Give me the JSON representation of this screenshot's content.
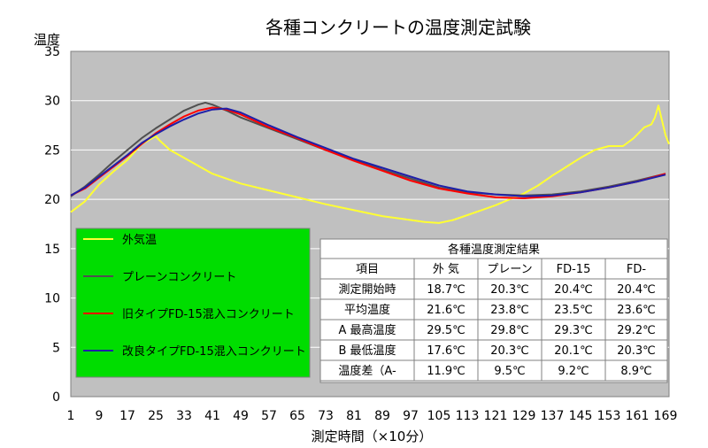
{
  "chart_data": {
    "type": "line",
    "title": "各種コンクリートの温度測定試験",
    "ylabel": "温度",
    "xlabel": "測定時間（×10分）",
    "ylim": [
      0,
      35
    ],
    "y_ticks": [
      "0",
      "5",
      "10",
      "15",
      "20",
      "25",
      "30",
      "35"
    ],
    "x_ticks": [
      "1",
      "9",
      "17",
      "25",
      "33",
      "41",
      "49",
      "57",
      "65",
      "73",
      "81",
      "89",
      "97",
      "105",
      "113",
      "121",
      "129",
      "137",
      "145",
      "153",
      "161",
      "169"
    ],
    "xlim": [
      1,
      170
    ],
    "grid": true,
    "legend": {
      "placement": "bottom-left",
      "items": [
        "外気温",
        "プレーンコンクリート",
        "旧タイプFD-15混入コンクリート",
        "改良タイプFD-15混入コンクリート"
      ]
    },
    "series": [
      {
        "name": "外気温",
        "color": "#ffff33",
        "points": [
          [
            1,
            18.7
          ],
          [
            5,
            19.8
          ],
          [
            9,
            21.5
          ],
          [
            13,
            22.8
          ],
          [
            17,
            24.0
          ],
          [
            21,
            25.6
          ],
          [
            25,
            26.4
          ],
          [
            26,
            26.0
          ],
          [
            29,
            25.0
          ],
          [
            33,
            24.2
          ],
          [
            37,
            23.4
          ],
          [
            41,
            22.6
          ],
          [
            49,
            21.6
          ],
          [
            57,
            20.9
          ],
          [
            65,
            20.2
          ],
          [
            73,
            19.5
          ],
          [
            81,
            18.9
          ],
          [
            89,
            18.3
          ],
          [
            97,
            17.9
          ],
          [
            101,
            17.7
          ],
          [
            105,
            17.6
          ],
          [
            109,
            17.9
          ],
          [
            113,
            18.4
          ],
          [
            117,
            18.9
          ],
          [
            121,
            19.4
          ],
          [
            125,
            20.0
          ],
          [
            129,
            20.6
          ],
          [
            133,
            21.4
          ],
          [
            137,
            22.4
          ],
          [
            141,
            23.3
          ],
          [
            145,
            24.2
          ],
          [
            149,
            25.0
          ],
          [
            153,
            25.4
          ],
          [
            157,
            25.4
          ],
          [
            160,
            26.2
          ],
          [
            163,
            27.3
          ],
          [
            165,
            27.6
          ],
          [
            166,
            28.3
          ],
          [
            167,
            29.5
          ],
          [
            168,
            28.0
          ],
          [
            169,
            26.5
          ],
          [
            170,
            25.6
          ]
        ]
      },
      {
        "name": "プレーンコンクリート",
        "color": "#505050",
        "points": [
          [
            1,
            20.3
          ],
          [
            5,
            21.3
          ],
          [
            9,
            22.5
          ],
          [
            13,
            23.8
          ],
          [
            17,
            25.0
          ],
          [
            21,
            26.2
          ],
          [
            25,
            27.2
          ],
          [
            29,
            28.1
          ],
          [
            33,
            29.0
          ],
          [
            37,
            29.6
          ],
          [
            39,
            29.8
          ],
          [
            41,
            29.6
          ],
          [
            45,
            29.0
          ],
          [
            49,
            28.3
          ],
          [
            57,
            27.2
          ],
          [
            65,
            26.1
          ],
          [
            73,
            25.0
          ],
          [
            81,
            24.0
          ],
          [
            89,
            23.0
          ],
          [
            97,
            22.1
          ],
          [
            105,
            21.2
          ],
          [
            113,
            20.7
          ],
          [
            121,
            20.5
          ],
          [
            129,
            20.4
          ],
          [
            137,
            20.5
          ],
          [
            145,
            20.8
          ],
          [
            153,
            21.3
          ],
          [
            161,
            21.9
          ],
          [
            169,
            22.6
          ]
        ]
      },
      {
        "name": "旧タイプFD-15混入コンクリート",
        "color": "#ff0000",
        "points": [
          [
            1,
            20.4
          ],
          [
            5,
            21.1
          ],
          [
            9,
            22.2
          ],
          [
            13,
            23.3
          ],
          [
            17,
            24.4
          ],
          [
            21,
            25.6
          ],
          [
            25,
            26.7
          ],
          [
            29,
            27.6
          ],
          [
            33,
            28.4
          ],
          [
            37,
            29.0
          ],
          [
            41,
            29.3
          ],
          [
            45,
            29.1
          ],
          [
            49,
            28.6
          ],
          [
            57,
            27.3
          ],
          [
            65,
            26.2
          ],
          [
            73,
            25.0
          ],
          [
            81,
            23.9
          ],
          [
            89,
            22.9
          ],
          [
            97,
            21.9
          ],
          [
            105,
            21.1
          ],
          [
            113,
            20.6
          ],
          [
            121,
            20.2
          ],
          [
            129,
            20.1
          ],
          [
            137,
            20.3
          ],
          [
            145,
            20.7
          ],
          [
            153,
            21.2
          ],
          [
            161,
            21.8
          ],
          [
            169,
            22.6
          ]
        ]
      },
      {
        "name": "改良タイプFD-15混入コンクリート",
        "color": "#1f1fa8",
        "points": [
          [
            1,
            20.4
          ],
          [
            5,
            21.2
          ],
          [
            9,
            22.3
          ],
          [
            13,
            23.4
          ],
          [
            17,
            24.5
          ],
          [
            21,
            25.7
          ],
          [
            25,
            26.6
          ],
          [
            29,
            27.4
          ],
          [
            33,
            28.1
          ],
          [
            37,
            28.7
          ],
          [
            41,
            29.1
          ],
          [
            45,
            29.2
          ],
          [
            49,
            28.8
          ],
          [
            57,
            27.5
          ],
          [
            65,
            26.3
          ],
          [
            73,
            25.2
          ],
          [
            81,
            24.1
          ],
          [
            89,
            23.2
          ],
          [
            97,
            22.3
          ],
          [
            105,
            21.4
          ],
          [
            113,
            20.8
          ],
          [
            121,
            20.5
          ],
          [
            129,
            20.3
          ],
          [
            137,
            20.4
          ],
          [
            145,
            20.7
          ],
          [
            153,
            21.2
          ],
          [
            161,
            21.8
          ],
          [
            169,
            22.5
          ]
        ]
      }
    ],
    "summary_table": {
      "title": "各種温度測定結果",
      "headers": [
        "項目",
        "外 気",
        "プレーン",
        "FD-15",
        "FD-"
      ],
      "rows": [
        [
          "測定開始時",
          "18.7℃",
          "20.3℃",
          "20.4℃",
          "20.4℃"
        ],
        [
          "平均温度",
          "21.6℃",
          "23.8℃",
          "23.5℃",
          "23.6℃"
        ],
        [
          "A 最高温度",
          "29.5℃",
          "29.8℃",
          "29.3℃",
          "29.2℃"
        ],
        [
          "B 最低温度",
          "17.6℃",
          "20.3℃",
          "20.1℃",
          "20.3℃"
        ],
        [
          "温度差（A-",
          "11.9℃",
          "9.5℃",
          "9.2℃",
          "8.9℃"
        ]
      ]
    }
  }
}
